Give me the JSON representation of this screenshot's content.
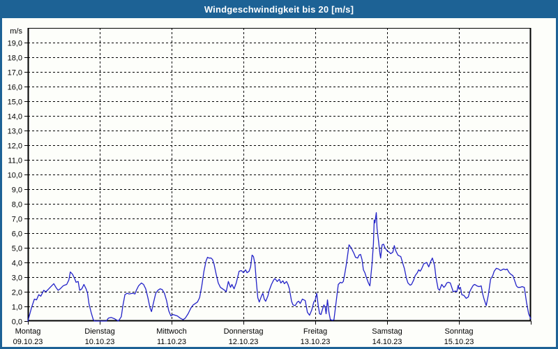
{
  "window": {
    "title": "Windgeschwindigkeit bis 20 [m/s]",
    "frame_color": "#1d6295",
    "background_color": "#fdfefa"
  },
  "chart_data": {
    "type": "line",
    "title": "Windgeschwindigkeit bis 20 [m/s]",
    "unit_label": "m/s",
    "ylabel": "m/s",
    "ylim": [
      0,
      20
    ],
    "ytick_step": 1,
    "ytick_labels": [
      "0,0",
      "1,0",
      "2,0",
      "3,0",
      "4,0",
      "5,0",
      "6,0",
      "7,0",
      "8,0",
      "9,0",
      "10,0",
      "11,0",
      "12,0",
      "13,0",
      "14,0",
      "15,0",
      "16,0",
      "17,0",
      "18,0",
      "19,0"
    ],
    "grid": "dashed",
    "legend": "none",
    "line_color": "#2222c8",
    "axis_color": "#000000",
    "x_axis": {
      "xlim_days": [
        0,
        7
      ],
      "x_unit": "days since Montag 09.10.23 00:00",
      "day_labels": [
        {
          "name": "Montag",
          "date": "09.10.23"
        },
        {
          "name": "Dienstag",
          "date": "10.10.23"
        },
        {
          "name": "Mittwoch",
          "date": "11.10.23"
        },
        {
          "name": "Donnerstag",
          "date": "12.10.23"
        },
        {
          "name": "Freitag",
          "date": "13.10.23"
        },
        {
          "name": "Samstag",
          "date": "14.10.23"
        },
        {
          "name": "Sonntag",
          "date": "15.10.23"
        }
      ]
    },
    "series": [
      {
        "name": "Windgeschwindigkeit [m/s]",
        "points": [
          [
            0.0,
            0.0
          ],
          [
            0.05,
            0.9
          ],
          [
            0.09,
            1.5
          ],
          [
            0.12,
            1.45
          ],
          [
            0.15,
            1.8
          ],
          [
            0.18,
            1.7
          ],
          [
            0.22,
            2.1
          ],
          [
            0.25,
            2.0
          ],
          [
            0.29,
            2.2
          ],
          [
            0.33,
            2.4
          ],
          [
            0.36,
            2.55
          ],
          [
            0.39,
            2.3
          ],
          [
            0.42,
            2.1
          ],
          [
            0.45,
            2.2
          ],
          [
            0.49,
            2.4
          ],
          [
            0.51,
            2.45
          ],
          [
            0.54,
            2.5
          ],
          [
            0.57,
            2.8
          ],
          [
            0.59,
            3.35
          ],
          [
            0.62,
            3.2
          ],
          [
            0.65,
            2.9
          ],
          [
            0.67,
            2.65
          ],
          [
            0.7,
            2.7
          ],
          [
            0.72,
            2.1
          ],
          [
            0.75,
            2.2
          ],
          [
            0.78,
            2.5
          ],
          [
            0.81,
            2.2
          ],
          [
            0.83,
            1.9
          ],
          [
            0.85,
            1.2
          ],
          [
            0.88,
            0.6
          ],
          [
            0.91,
            0.1
          ],
          [
            0.93,
            0.0
          ],
          [
            1.09,
            0.0
          ],
          [
            1.12,
            0.2
          ],
          [
            1.16,
            0.25
          ],
          [
            1.21,
            0.15
          ],
          [
            1.26,
            0.0
          ],
          [
            1.3,
            0.3
          ],
          [
            1.32,
            1.0
          ],
          [
            1.35,
            1.8
          ],
          [
            1.38,
            1.9
          ],
          [
            1.41,
            1.85
          ],
          [
            1.46,
            1.9
          ],
          [
            1.49,
            1.85
          ],
          [
            1.51,
            2.1
          ],
          [
            1.54,
            2.4
          ],
          [
            1.58,
            2.6
          ],
          [
            1.61,
            2.5
          ],
          [
            1.64,
            2.2
          ],
          [
            1.67,
            1.6
          ],
          [
            1.7,
            0.9
          ],
          [
            1.72,
            0.65
          ],
          [
            1.75,
            1.3
          ],
          [
            1.78,
            1.9
          ],
          [
            1.81,
            2.1
          ],
          [
            1.84,
            2.2
          ],
          [
            1.87,
            2.15
          ],
          [
            1.9,
            1.9
          ],
          [
            1.93,
            1.4
          ],
          [
            1.96,
            0.7
          ],
          [
            1.99,
            0.35
          ],
          [
            2.02,
            0.45
          ],
          [
            2.05,
            0.4
          ],
          [
            2.08,
            0.35
          ],
          [
            2.12,
            0.2
          ],
          [
            2.16,
            0.1
          ],
          [
            2.19,
            0.2
          ],
          [
            2.23,
            0.5
          ],
          [
            2.27,
            0.9
          ],
          [
            2.3,
            1.1
          ],
          [
            2.33,
            1.2
          ],
          [
            2.36,
            1.3
          ],
          [
            2.39,
            1.6
          ],
          [
            2.42,
            2.4
          ],
          [
            2.45,
            3.4
          ],
          [
            2.48,
            4.1
          ],
          [
            2.5,
            4.35
          ],
          [
            2.52,
            4.3
          ],
          [
            2.55,
            4.3
          ],
          [
            2.57,
            4.2
          ],
          [
            2.59,
            3.9
          ],
          [
            2.62,
            3.2
          ],
          [
            2.65,
            2.6
          ],
          [
            2.68,
            2.3
          ],
          [
            2.71,
            2.2
          ],
          [
            2.74,
            2.1
          ],
          [
            2.76,
            2.0
          ],
          [
            2.79,
            2.7
          ],
          [
            2.82,
            2.3
          ],
          [
            2.84,
            2.5
          ],
          [
            2.87,
            2.2
          ],
          [
            2.9,
            2.6
          ],
          [
            2.94,
            3.4
          ],
          [
            2.97,
            3.45
          ],
          [
            3.0,
            3.3
          ],
          [
            3.03,
            3.5
          ],
          [
            3.05,
            3.3
          ],
          [
            3.08,
            3.4
          ],
          [
            3.1,
            3.7
          ],
          [
            3.12,
            4.5
          ],
          [
            3.14,
            4.4
          ],
          [
            3.16,
            3.9
          ],
          [
            3.18,
            2.7
          ],
          [
            3.2,
            1.6
          ],
          [
            3.22,
            1.3
          ],
          [
            3.25,
            1.7
          ],
          [
            3.27,
            1.9
          ],
          [
            3.29,
            1.5
          ],
          [
            3.31,
            1.35
          ],
          [
            3.34,
            1.7
          ],
          [
            3.36,
            2.1
          ],
          [
            3.39,
            2.5
          ],
          [
            3.42,
            2.8
          ],
          [
            3.44,
            2.9
          ],
          [
            3.47,
            2.7
          ],
          [
            3.5,
            2.85
          ],
          [
            3.52,
            2.6
          ],
          [
            3.55,
            2.75
          ],
          [
            3.57,
            2.55
          ],
          [
            3.6,
            2.7
          ],
          [
            3.62,
            2.5
          ],
          [
            3.64,
            2.2
          ],
          [
            3.67,
            1.35
          ],
          [
            3.69,
            1.1
          ],
          [
            3.72,
            1.05
          ],
          [
            3.75,
            1.3
          ],
          [
            3.77,
            1.35
          ],
          [
            3.79,
            1.2
          ],
          [
            3.82,
            1.5
          ],
          [
            3.84,
            1.45
          ],
          [
            3.86,
            1.4
          ],
          [
            3.89,
            0.6
          ],
          [
            3.92,
            0.4
          ],
          [
            3.95,
            0.75
          ],
          [
            3.98,
            1.3
          ],
          [
            4.0,
            1.45
          ],
          [
            4.02,
            1.9
          ],
          [
            4.04,
            1.1
          ],
          [
            4.06,
            0.5
          ],
          [
            4.08,
            0.45
          ],
          [
            4.1,
            0.8
          ],
          [
            4.12,
            1.1
          ],
          [
            4.14,
            0.9
          ],
          [
            4.15,
            0.5
          ],
          [
            4.17,
            1.45
          ],
          [
            4.19,
            0.6
          ],
          [
            4.21,
            0.1
          ],
          [
            4.24,
            0.05
          ],
          [
            4.26,
            0.1
          ],
          [
            4.29,
            1.3
          ],
          [
            4.32,
            2.5
          ],
          [
            4.35,
            2.65
          ],
          [
            4.37,
            2.6
          ],
          [
            4.39,
            2.7
          ],
          [
            4.41,
            3.2
          ],
          [
            4.43,
            3.8
          ],
          [
            4.45,
            4.5
          ],
          [
            4.47,
            5.2
          ],
          [
            4.5,
            5.0
          ],
          [
            4.51,
            4.9
          ],
          [
            4.54,
            4.6
          ],
          [
            4.56,
            4.35
          ],
          [
            4.59,
            4.3
          ],
          [
            4.61,
            4.5
          ],
          [
            4.63,
            4.55
          ],
          [
            4.65,
            4.2
          ],
          [
            4.67,
            3.5
          ],
          [
            4.69,
            3.3
          ],
          [
            4.71,
            3.0
          ],
          [
            4.74,
            2.6
          ],
          [
            4.76,
            2.4
          ],
          [
            4.79,
            3.9
          ],
          [
            4.81,
            5.3
          ],
          [
            4.82,
            6.9
          ],
          [
            4.83,
            6.7
          ],
          [
            4.85,
            7.4
          ],
          [
            4.86,
            6.3
          ],
          [
            4.88,
            5.5
          ],
          [
            4.9,
            4.6
          ],
          [
            4.91,
            4.3
          ],
          [
            4.93,
            5.2
          ],
          [
            4.95,
            5.25
          ],
          [
            4.97,
            5.0
          ],
          [
            5.0,
            4.8
          ],
          [
            5.03,
            4.7
          ],
          [
            5.05,
            4.6
          ],
          [
            5.08,
            4.7
          ],
          [
            5.1,
            5.15
          ],
          [
            5.12,
            4.8
          ],
          [
            5.15,
            4.5
          ],
          [
            5.17,
            4.45
          ],
          [
            5.19,
            4.4
          ],
          [
            5.22,
            3.9
          ],
          [
            5.24,
            3.6
          ],
          [
            5.27,
            2.9
          ],
          [
            5.29,
            2.6
          ],
          [
            5.32,
            2.45
          ],
          [
            5.34,
            2.5
          ],
          [
            5.37,
            2.8
          ],
          [
            5.39,
            3.1
          ],
          [
            5.42,
            3.3
          ],
          [
            5.44,
            3.5
          ],
          [
            5.46,
            3.4
          ],
          [
            5.48,
            3.55
          ],
          [
            5.51,
            3.9
          ],
          [
            5.55,
            4.0
          ],
          [
            5.58,
            3.7
          ],
          [
            5.61,
            4.1
          ],
          [
            5.63,
            4.3
          ],
          [
            5.66,
            3.8
          ],
          [
            5.68,
            3.0
          ],
          [
            5.71,
            2.2
          ],
          [
            5.73,
            2.1
          ],
          [
            5.76,
            2.5
          ],
          [
            5.79,
            2.3
          ],
          [
            5.81,
            2.4
          ],
          [
            5.83,
            2.6
          ],
          [
            5.85,
            2.65
          ],
          [
            5.88,
            2.6
          ],
          [
            5.9,
            2.3
          ],
          [
            5.92,
            2.0
          ],
          [
            5.95,
            2.05
          ],
          [
            5.97,
            2.0
          ],
          [
            5.99,
            2.45
          ],
          [
            6.0,
            2.2
          ],
          [
            6.02,
            2.3
          ],
          [
            6.04,
            1.8
          ],
          [
            6.07,
            1.75
          ],
          [
            6.1,
            1.55
          ],
          [
            6.13,
            1.65
          ],
          [
            6.15,
            2.0
          ],
          [
            6.17,
            2.2
          ],
          [
            6.2,
            2.45
          ],
          [
            6.22,
            2.5
          ],
          [
            6.25,
            2.4
          ],
          [
            6.28,
            2.35
          ],
          [
            6.31,
            2.4
          ],
          [
            6.33,
            1.85
          ],
          [
            6.35,
            1.5
          ],
          [
            6.38,
            1.05
          ],
          [
            6.41,
            1.8
          ],
          [
            6.44,
            2.85
          ],
          [
            6.47,
            3.1
          ],
          [
            6.49,
            3.4
          ],
          [
            6.52,
            3.6
          ],
          [
            6.55,
            3.55
          ],
          [
            6.58,
            3.45
          ],
          [
            6.6,
            3.5
          ],
          [
            6.62,
            3.55
          ],
          [
            6.65,
            3.5
          ],
          [
            6.67,
            3.55
          ],
          [
            6.7,
            3.3
          ],
          [
            6.72,
            3.2
          ],
          [
            6.75,
            3.1
          ],
          [
            6.78,
            2.7
          ],
          [
            6.8,
            2.4
          ],
          [
            6.82,
            2.3
          ],
          [
            6.85,
            2.3
          ],
          [
            6.88,
            2.35
          ],
          [
            6.91,
            2.3
          ],
          [
            6.94,
            1.3
          ],
          [
            6.97,
            0.5
          ],
          [
            7.0,
            0.15
          ]
        ]
      }
    ]
  }
}
